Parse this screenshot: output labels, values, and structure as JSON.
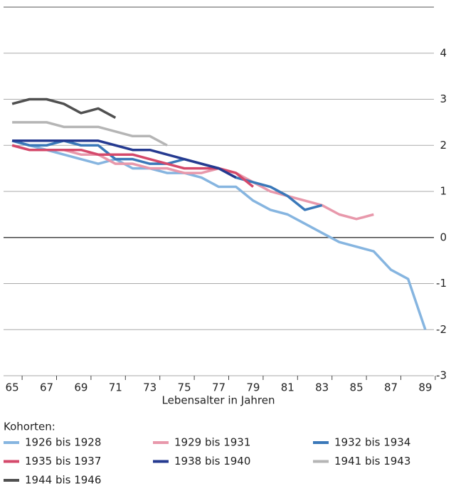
{
  "chart_data": {
    "type": "line",
    "x_label": "Lebensalter in Jahren",
    "legend_title": "Kohorten:",
    "x": [
      65,
      66,
      67,
      68,
      69,
      70,
      71,
      72,
      73,
      74,
      75,
      76,
      77,
      78,
      79,
      80,
      81,
      82,
      83,
      84,
      85,
      86,
      87,
      88,
      89
    ],
    "xlim": [
      64.5,
      89.5
    ],
    "xticks": [
      65,
      67,
      69,
      71,
      73,
      75,
      77,
      79,
      81,
      83,
      85,
      87,
      89
    ],
    "ylim": [
      -3,
      5
    ],
    "yticks": [
      -3,
      -2,
      -1,
      0,
      1,
      2,
      3,
      4
    ],
    "grid": true,
    "series": [
      {
        "name": "1926 bis 1928",
        "color": "#86b5e0",
        "values": [
          2.1,
          2.0,
          1.9,
          1.8,
          1.7,
          1.6,
          1.7,
          1.5,
          1.5,
          1.4,
          1.4,
          1.3,
          1.1,
          1.1,
          0.8,
          0.6,
          0.5,
          0.3,
          0.1,
          -0.1,
          -0.2,
          -0.3,
          -0.7,
          -0.9,
          -2.0
        ]
      },
      {
        "name": "1929 bis 1931",
        "color": "#e898ab",
        "values": [
          2.0,
          1.9,
          1.9,
          1.9,
          1.8,
          1.8,
          1.6,
          1.6,
          1.5,
          1.5,
          1.4,
          1.4,
          1.5,
          1.4,
          1.2,
          1.0,
          0.9,
          0.8,
          0.7,
          0.5,
          0.4,
          0.5,
          null,
          null,
          null
        ]
      },
      {
        "name": "1932 bis 1934",
        "color": "#3a78b9",
        "values": [
          2.1,
          2.0,
          2.0,
          2.1,
          2.0,
          2.0,
          1.7,
          1.7,
          1.6,
          1.6,
          1.7,
          1.6,
          1.5,
          1.3,
          1.2,
          1.1,
          0.9,
          0.6,
          0.7,
          null,
          null,
          null,
          null,
          null,
          null
        ]
      },
      {
        "name": "1935 bis 1937",
        "color": "#d4496b",
        "values": [
          2.0,
          1.9,
          1.9,
          1.9,
          1.9,
          1.8,
          1.8,
          1.8,
          1.7,
          1.6,
          1.5,
          1.5,
          1.5,
          1.4,
          1.1,
          null,
          null,
          null,
          null,
          null,
          null,
          null,
          null,
          null,
          null
        ]
      },
      {
        "name": "1938 bis 1940",
        "color": "#253a90",
        "values": [
          2.1,
          2.1,
          2.1,
          2.1,
          2.1,
          2.1,
          2.0,
          1.9,
          1.9,
          1.8,
          1.7,
          1.6,
          1.5,
          1.3,
          null,
          null,
          null,
          null,
          null,
          null,
          null,
          null,
          null,
          null,
          null
        ]
      },
      {
        "name": "1941 bis 1943",
        "color": "#b5b5b5",
        "values": [
          2.5,
          2.5,
          2.5,
          2.4,
          2.4,
          2.4,
          2.3,
          2.2,
          2.2,
          2.0,
          null,
          null,
          null,
          null,
          null,
          null,
          null,
          null,
          null,
          null,
          null,
          null,
          null,
          null,
          null
        ]
      },
      {
        "name": "1944 bis 1946",
        "color": "#505050",
        "values": [
          2.9,
          3.0,
          3.0,
          2.9,
          2.7,
          2.8,
          2.6,
          null,
          null,
          null,
          null,
          null,
          null,
          null,
          null,
          null,
          null,
          null,
          null,
          null,
          null,
          null,
          null,
          null,
          null
        ]
      }
    ]
  }
}
